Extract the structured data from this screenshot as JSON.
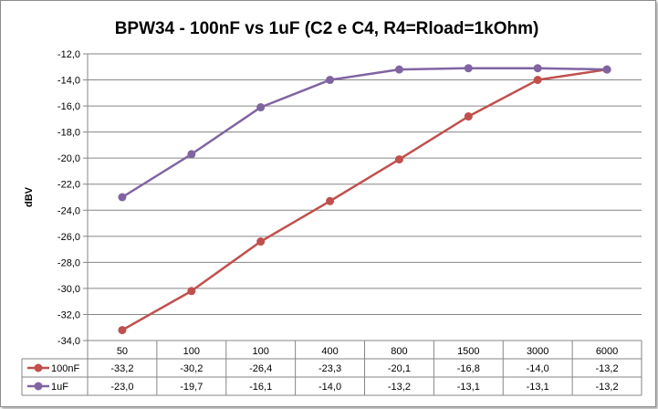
{
  "chart_data": {
    "type": "line",
    "title": "BPW34 - 100nF vs 1uF (C2  e C4, R4=Rload=1kOhm)",
    "xlabel": "",
    "ylabel": "dBV",
    "ylim": [
      -34,
      -12
    ],
    "ytick_step": 2,
    "ytick_labels": [
      "-12,0",
      "-14,0",
      "-16,0",
      "-18,0",
      "-20,0",
      "-22,0",
      "-24,0",
      "-26,0",
      "-28,0",
      "-30,0",
      "-32,0",
      "-34,0"
    ],
    "grid": true,
    "legend": "data-table",
    "categories": [
      "50",
      "100",
      "100",
      "400",
      "800",
      "1500",
      "3000",
      "6000"
    ],
    "series": [
      {
        "name": "100nF",
        "color": "#c0504d",
        "values": [
          -33.2,
          -30.2,
          -26.4,
          -23.3,
          -20.1,
          -16.8,
          -14.0,
          -13.2
        ],
        "labels": [
          "-33,2",
          "-30,2",
          "-26,4",
          "-23,3",
          "-20,1",
          "-16,8",
          "-14,0",
          "-13,2"
        ]
      },
      {
        "name": "1uF",
        "color": "#8064a2",
        "values": [
          -23.0,
          -19.7,
          -16.1,
          -14.0,
          -13.2,
          -13.1,
          -13.1,
          -13.2
        ],
        "labels": [
          "-23,0",
          "-19,7",
          "-16,1",
          "-14,0",
          "-13,2",
          "-13,1",
          "-13,1",
          "-13,2"
        ]
      }
    ]
  }
}
